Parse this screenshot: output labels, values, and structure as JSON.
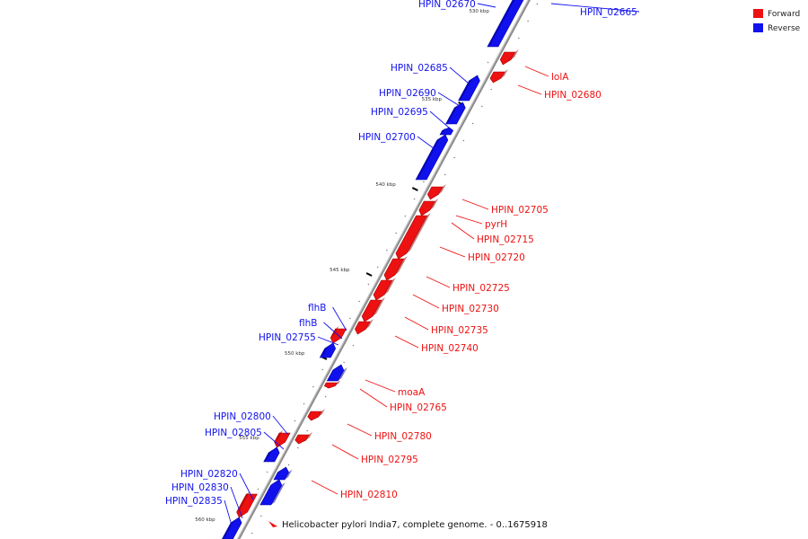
{
  "legend": {
    "forward": {
      "label": "Forward",
      "color": "#ee1111"
    },
    "reverse": {
      "label": "Reverse",
      "color": "#1111ee"
    }
  },
  "title": "Helicobacter pylori India7, complete genome. - 0..1675918",
  "ticks": [
    "530 kbp",
    "535 kbp",
    "540 kbp",
    "545 kbp",
    "550 kbp",
    "555 kbp",
    "560 kbp"
  ],
  "genes": [
    {
      "name": "HPIN_02665",
      "strand": "reverse"
    },
    {
      "name": "HPIN_02670",
      "strand": "reverse"
    },
    {
      "name": "lolA",
      "strand": "forward"
    },
    {
      "name": "HPIN_02680",
      "strand": "forward"
    },
    {
      "name": "HPIN_02685",
      "strand": "reverse"
    },
    {
      "name": "HPIN_02690",
      "strand": "reverse"
    },
    {
      "name": "HPIN_02695",
      "strand": "reverse"
    },
    {
      "name": "HPIN_02700",
      "strand": "reverse"
    },
    {
      "name": "HPIN_02705",
      "strand": "forward"
    },
    {
      "name": "pyrH",
      "strand": "forward"
    },
    {
      "name": "HPIN_02715",
      "strand": "forward"
    },
    {
      "name": "HPIN_02720",
      "strand": "forward"
    },
    {
      "name": "HPIN_02725",
      "strand": "forward"
    },
    {
      "name": "HPIN_02730",
      "strand": "forward"
    },
    {
      "name": "HPIN_02735",
      "strand": "forward"
    },
    {
      "name": "HPIN_02740",
      "strand": "forward"
    },
    {
      "name": "flhB",
      "strand": "reverse"
    },
    {
      "name": "flhB",
      "strand": "reverse"
    },
    {
      "name": "HPIN_02755",
      "strand": "reverse"
    },
    {
      "name": "moaA",
      "strand": "forward"
    },
    {
      "name": "HPIN_02765",
      "strand": "forward"
    },
    {
      "name": "HPIN_02780",
      "strand": "forward"
    },
    {
      "name": "HPIN_02795",
      "strand": "forward"
    },
    {
      "name": "HPIN_02800",
      "strand": "reverse"
    },
    {
      "name": "HPIN_02805",
      "strand": "reverse"
    },
    {
      "name": "HPIN_02810",
      "strand": "forward"
    },
    {
      "name": "HPIN_02820",
      "strand": "reverse"
    },
    {
      "name": "HPIN_02830",
      "strand": "reverse"
    },
    {
      "name": "HPIN_02835",
      "strand": "reverse"
    }
  ]
}
